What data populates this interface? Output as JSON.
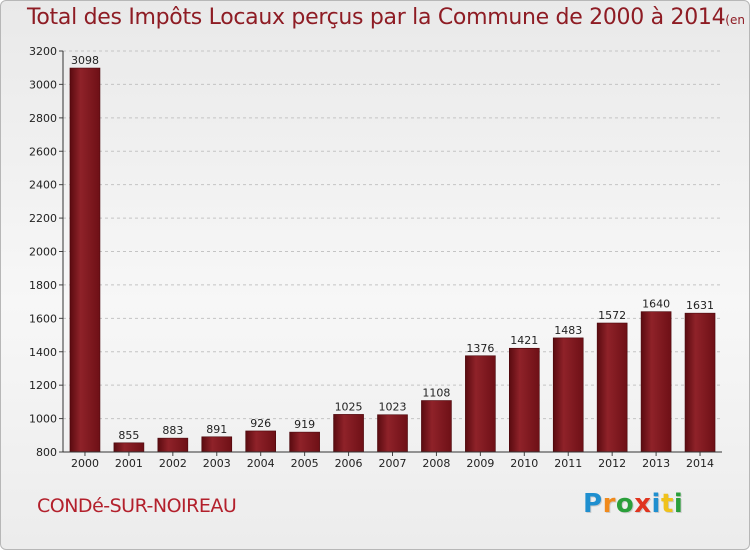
{
  "title": "Total des Impôts Locaux perçus par la Commune de 2000 à 2014",
  "title_unit": "(en milliers d'€)",
  "commune": "CONDé-SUR-NOIREAU",
  "logo_text": "Proxiti",
  "chart_data": {
    "type": "bar",
    "categories": [
      "2000",
      "2001",
      "2002",
      "2003",
      "2004",
      "2005",
      "2006",
      "2007",
      "2008",
      "2009",
      "2010",
      "2011",
      "2012",
      "2013",
      "2014"
    ],
    "values": [
      3098,
      855,
      883,
      891,
      926,
      919,
      1025,
      1023,
      1108,
      1376,
      1421,
      1483,
      1572,
      1640,
      1631
    ],
    "ylim": [
      800,
      3200
    ],
    "yticks": [
      800,
      1000,
      1200,
      1400,
      1600,
      1800,
      2000,
      2200,
      2400,
      2600,
      2800,
      3000,
      3200
    ],
    "grid": true,
    "bar_color": "#8b1e25"
  }
}
